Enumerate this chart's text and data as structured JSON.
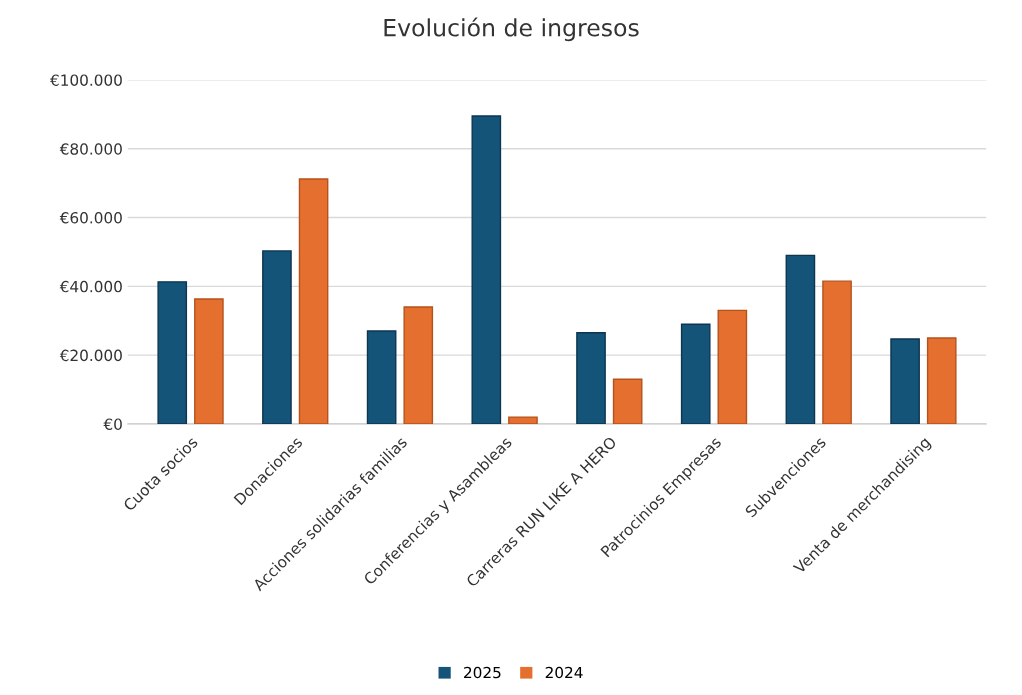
{
  "chart_data": {
    "type": "bar",
    "title": "Evolución de ingresos",
    "categories": [
      "Cuota socios",
      "Donaciones",
      "Acciones solidarias familias",
      "Conferencias y Asambleas",
      "Carreras RUN LIKE A HERO",
      "Patrocinios Empresas",
      "Subvenciones",
      "Venta de merchandising"
    ],
    "series": [
      {
        "name": "2025",
        "color": "#145479",
        "values": [
          41300,
          50300,
          27000,
          89500,
          26500,
          29000,
          49000,
          24700
        ]
      },
      {
        "name": "2024",
        "color": "#e46f2e",
        "values": [
          36300,
          71200,
          34000,
          2000,
          13000,
          33000,
          41500,
          25000
        ]
      }
    ],
    "ylim": [
      0,
      100000
    ],
    "yticks": [
      {
        "value": 0,
        "label": "€0"
      },
      {
        "value": 20000,
        "label": "€20.000"
      },
      {
        "value": 40000,
        "label": "€40.000"
      },
      {
        "value": 60000,
        "label": "€60.000"
      },
      {
        "value": 80000,
        "label": "€80.000"
      },
      {
        "value": 100000,
        "label": "€100.000"
      }
    ],
    "grid": "y",
    "legend": "bottom"
  }
}
